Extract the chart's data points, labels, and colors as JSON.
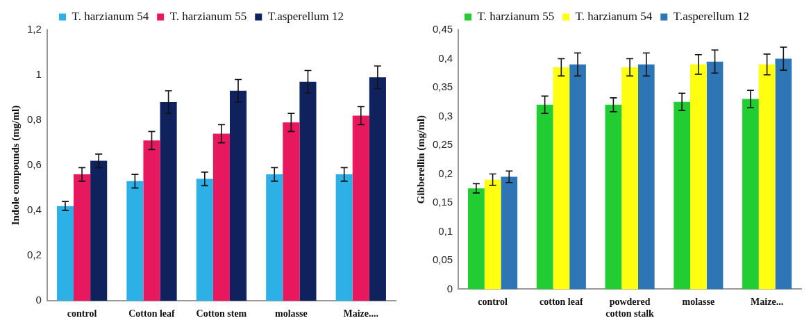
{
  "chart_data": [
    {
      "type": "bar",
      "ylabel": "Indole compounds (mg/ml)",
      "categories": [
        "control",
        "Cotton leaf",
        "Cotton stem",
        "molasse",
        "Maize...."
      ],
      "series": [
        {
          "name": "T. harzianum 54",
          "color": "#2db0e6",
          "values": [
            0.42,
            0.53,
            0.54,
            0.56,
            0.56
          ],
          "errors": [
            0.02,
            0.03,
            0.03,
            0.03,
            0.03
          ]
        },
        {
          "name": "T. harzianum 55",
          "color": "#e8185e",
          "values": [
            0.56,
            0.71,
            0.74,
            0.79,
            0.82
          ],
          "errors": [
            0.03,
            0.04,
            0.04,
            0.04,
            0.04
          ]
        },
        {
          "name": "T.asperellum 12",
          "color": "#10225e",
          "values": [
            0.62,
            0.88,
            0.93,
            0.97,
            0.99
          ],
          "errors": [
            0.03,
            0.05,
            0.05,
            0.05,
            0.05
          ]
        }
      ],
      "ylim": [
        0,
        1.2
      ],
      "yticks": [
        {
          "value": 0,
          "label": "0"
        },
        {
          "value": 0.2,
          "label": "0,2"
        },
        {
          "value": 0.4,
          "label": "0,4"
        },
        {
          "value": 0.6,
          "label": "0,6"
        },
        {
          "value": 0.8,
          "label": "0,8"
        },
        {
          "value": 1,
          "label": "1"
        },
        {
          "value": 1.2,
          "label": "1,2"
        }
      ],
      "grid": false,
      "legend": "top"
    },
    {
      "type": "bar",
      "ylabel": "Gibberellin (mg/ml)",
      "categories": [
        "control",
        "cotton leaf",
        "powdered cotton stalk",
        "molasse",
        "Maize..."
      ],
      "series": [
        {
          "name": "T. harzianum 55",
          "color": "#22cc33",
          "values": [
            0.175,
            0.32,
            0.32,
            0.325,
            0.33
          ],
          "errors": [
            0.008,
            0.015,
            0.012,
            0.015,
            0.015
          ]
        },
        {
          "name": "T. harzianum 54",
          "color": "#ffff10",
          "values": [
            0.19,
            0.385,
            0.385,
            0.39,
            0.39
          ],
          "errors": [
            0.01,
            0.015,
            0.015,
            0.017,
            0.018
          ]
        },
        {
          "name": "T.asperellum 12",
          "color": "#2e75b6",
          "values": [
            0.195,
            0.39,
            0.39,
            0.395,
            0.4
          ],
          "errors": [
            0.01,
            0.02,
            0.02,
            0.02,
            0.02
          ]
        }
      ],
      "ylim": [
        0,
        0.45
      ],
      "yticks": [
        {
          "value": 0,
          "label": "0"
        },
        {
          "value": 0.05,
          "label": "0,05"
        },
        {
          "value": 0.1,
          "label": "0,1"
        },
        {
          "value": 0.15,
          "label": "0,15"
        },
        {
          "value": 0.2,
          "label": "0,2"
        },
        {
          "value": 0.25,
          "label": "0,25"
        },
        {
          "value": 0.3,
          "label": "0,3"
        },
        {
          "value": 0.35,
          "label": "0,35"
        },
        {
          "value": 0.4,
          "label": "0,4"
        },
        {
          "value": 0.45,
          "label": "0,45"
        }
      ],
      "grid": false,
      "legend": "top"
    }
  ]
}
